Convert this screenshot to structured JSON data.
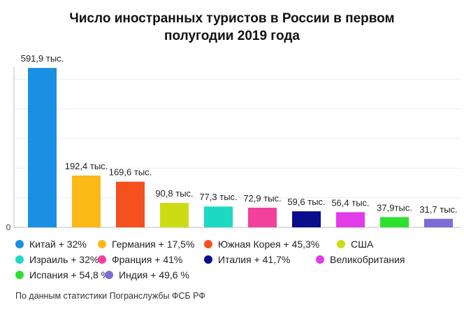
{
  "title_lines": [
    "Число иностранных туристов в России в первом",
    "полугодии 2019 года"
  ],
  "chart_data": {
    "type": "bar",
    "title": "Число иностранных туристов в России в первом полугодии 2019 года",
    "xlabel": "",
    "ylabel": "",
    "ylim": [
      0,
      600
    ],
    "y_tick_labels": [
      "0"
    ],
    "grid": true,
    "legend_position": "bottom",
    "categories": [
      "Китай",
      "Германия",
      "Южная Корея",
      "США",
      "Израиль",
      "Франция",
      "Италия",
      "Великобритания",
      "Испания",
      "Индия"
    ],
    "values": [
      591.9,
      192.4,
      169.6,
      90.8,
      77.3,
      72.9,
      59.6,
      56.4,
      37.9,
      31.7
    ],
    "value_labels": [
      "591,9 тыс.",
      "192,4 тыс.",
      "169,6 тыс.",
      "90,8 тыс.",
      "77,3 тыс.",
      "72,9 тыс.",
      "59,6 тыс.",
      "56,4 тыс.",
      "37,9тыс.",
      "31,7 тыс."
    ],
    "colors": [
      "#1a8fe3",
      "#fbb917",
      "#f4511e",
      "#cddc12",
      "#1dd9c3",
      "#f2419c",
      "#0a0d8c",
      "#e23ce8",
      "#2ee02e",
      "#7e6bd6"
    ],
    "legend_entries": [
      "Китай + 32%",
      "Германия + 17,5%",
      "Южная Корея + 45,3%",
      "США",
      "Израиль + 32%",
      "Франция + 41%",
      "Италия + 41,7%",
      "Великобритания",
      "Испания + 54,8 %",
      "Индия + 49,6 %"
    ]
  },
  "source": "По данным статистики Погранслужбы ФСБ РФ"
}
